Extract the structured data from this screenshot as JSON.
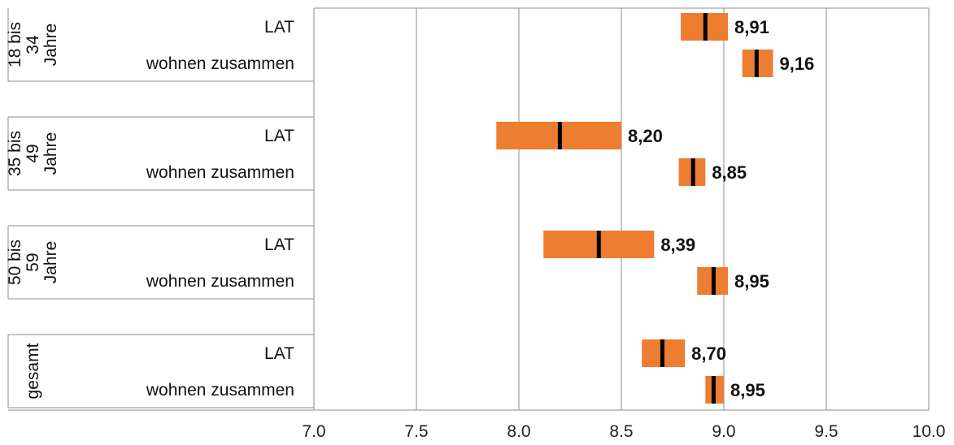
{
  "chart_data": {
    "type": "range-bar",
    "xlim": [
      7.0,
      10.0
    ],
    "xticks": [
      "7.0",
      "7.5",
      "8.0",
      "8.5",
      "9.0",
      "9.5",
      "10.0"
    ],
    "grid": true,
    "bar_color": "#ED7D31",
    "marker_color": "#000000",
    "groups": [
      {
        "label": "18 bis 34 Jahre",
        "label_lines": [
          "18 bis",
          "34",
          "Jahre"
        ],
        "rows": [
          {
            "category": "LAT",
            "value": 8.91,
            "low": 8.79,
            "high": 9.02,
            "label": "8,91"
          },
          {
            "category": "wohnen zusammen",
            "value": 9.16,
            "low": 9.09,
            "high": 9.24,
            "label": "9,16"
          }
        ]
      },
      {
        "label": "35 bis 49 Jahre",
        "label_lines": [
          "35 bis",
          "49",
          "Jahre"
        ],
        "rows": [
          {
            "category": "LAT",
            "value": 8.2,
            "low": 7.89,
            "high": 8.5,
            "label": "8,20"
          },
          {
            "category": "wohnen zusammen",
            "value": 8.85,
            "low": 8.78,
            "high": 8.91,
            "label": "8,85"
          }
        ]
      },
      {
        "label": "50 bis 59 Jahre",
        "label_lines": [
          "50 bis",
          "59",
          "Jahre"
        ],
        "rows": [
          {
            "category": "LAT",
            "value": 8.39,
            "low": 8.12,
            "high": 8.66,
            "label": "8,39"
          },
          {
            "category": "wohnen zusammen",
            "value": 8.95,
            "low": 8.87,
            "high": 9.02,
            "label": "8,95"
          }
        ]
      },
      {
        "label": "gesamt",
        "label_lines": [
          "gesamt"
        ],
        "rows": [
          {
            "category": "LAT",
            "value": 8.7,
            "low": 8.6,
            "high": 8.81,
            "label": "8,70"
          },
          {
            "category": "wohnen zusammen",
            "value": 8.95,
            "low": 8.91,
            "high": 9.0,
            "label": "8,95"
          }
        ]
      }
    ]
  }
}
